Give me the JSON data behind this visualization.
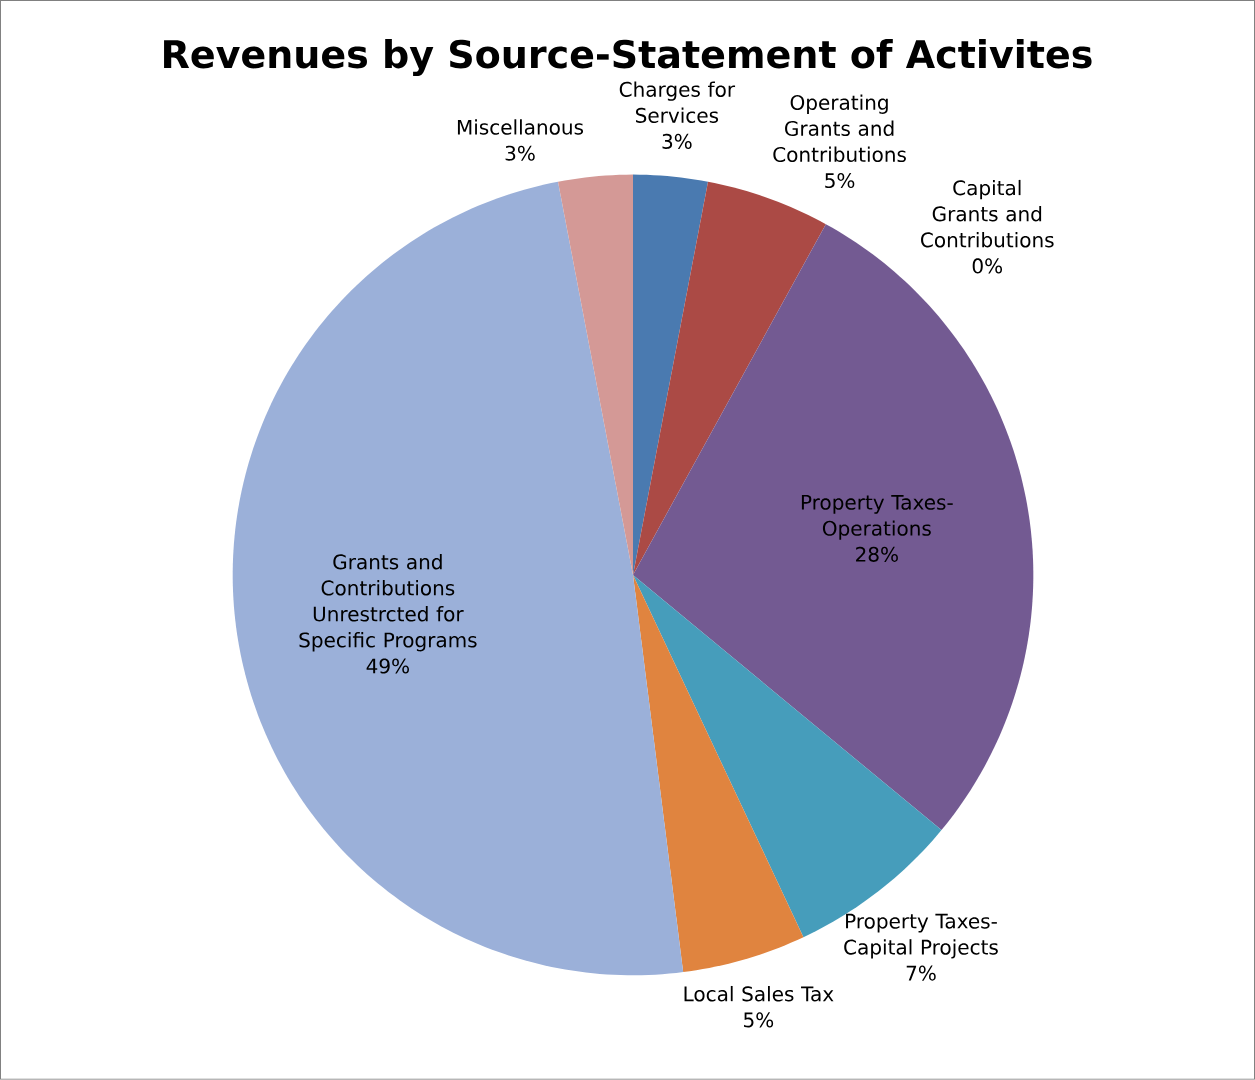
{
  "chart_data": {
    "type": "pie",
    "title": "Revenues by Source-Statement of Activites",
    "categories": [
      "Charges for Services",
      "Operating Grants and Contributions",
      "Capital Grants and Contributions",
      "Property Taxes-Operations",
      "Property Taxes-Capital Projects",
      "Local Sales Tax",
      "Grants and Contributions Unrestrcted for Specific Programs",
      "Miscellanous"
    ],
    "values": [
      3,
      5,
      0,
      28,
      7,
      5,
      49,
      3
    ],
    "value_labels": [
      "3%",
      "5%",
      "0%",
      "28%",
      "7%",
      "5%",
      "49%",
      "3%"
    ],
    "colors": [
      "#4a7ab0",
      "#ab4a45",
      "#8ab04a",
      "#735a92",
      "#469dbb",
      "#e0843f",
      "#9bb0d9",
      "#d49996"
    ]
  }
}
